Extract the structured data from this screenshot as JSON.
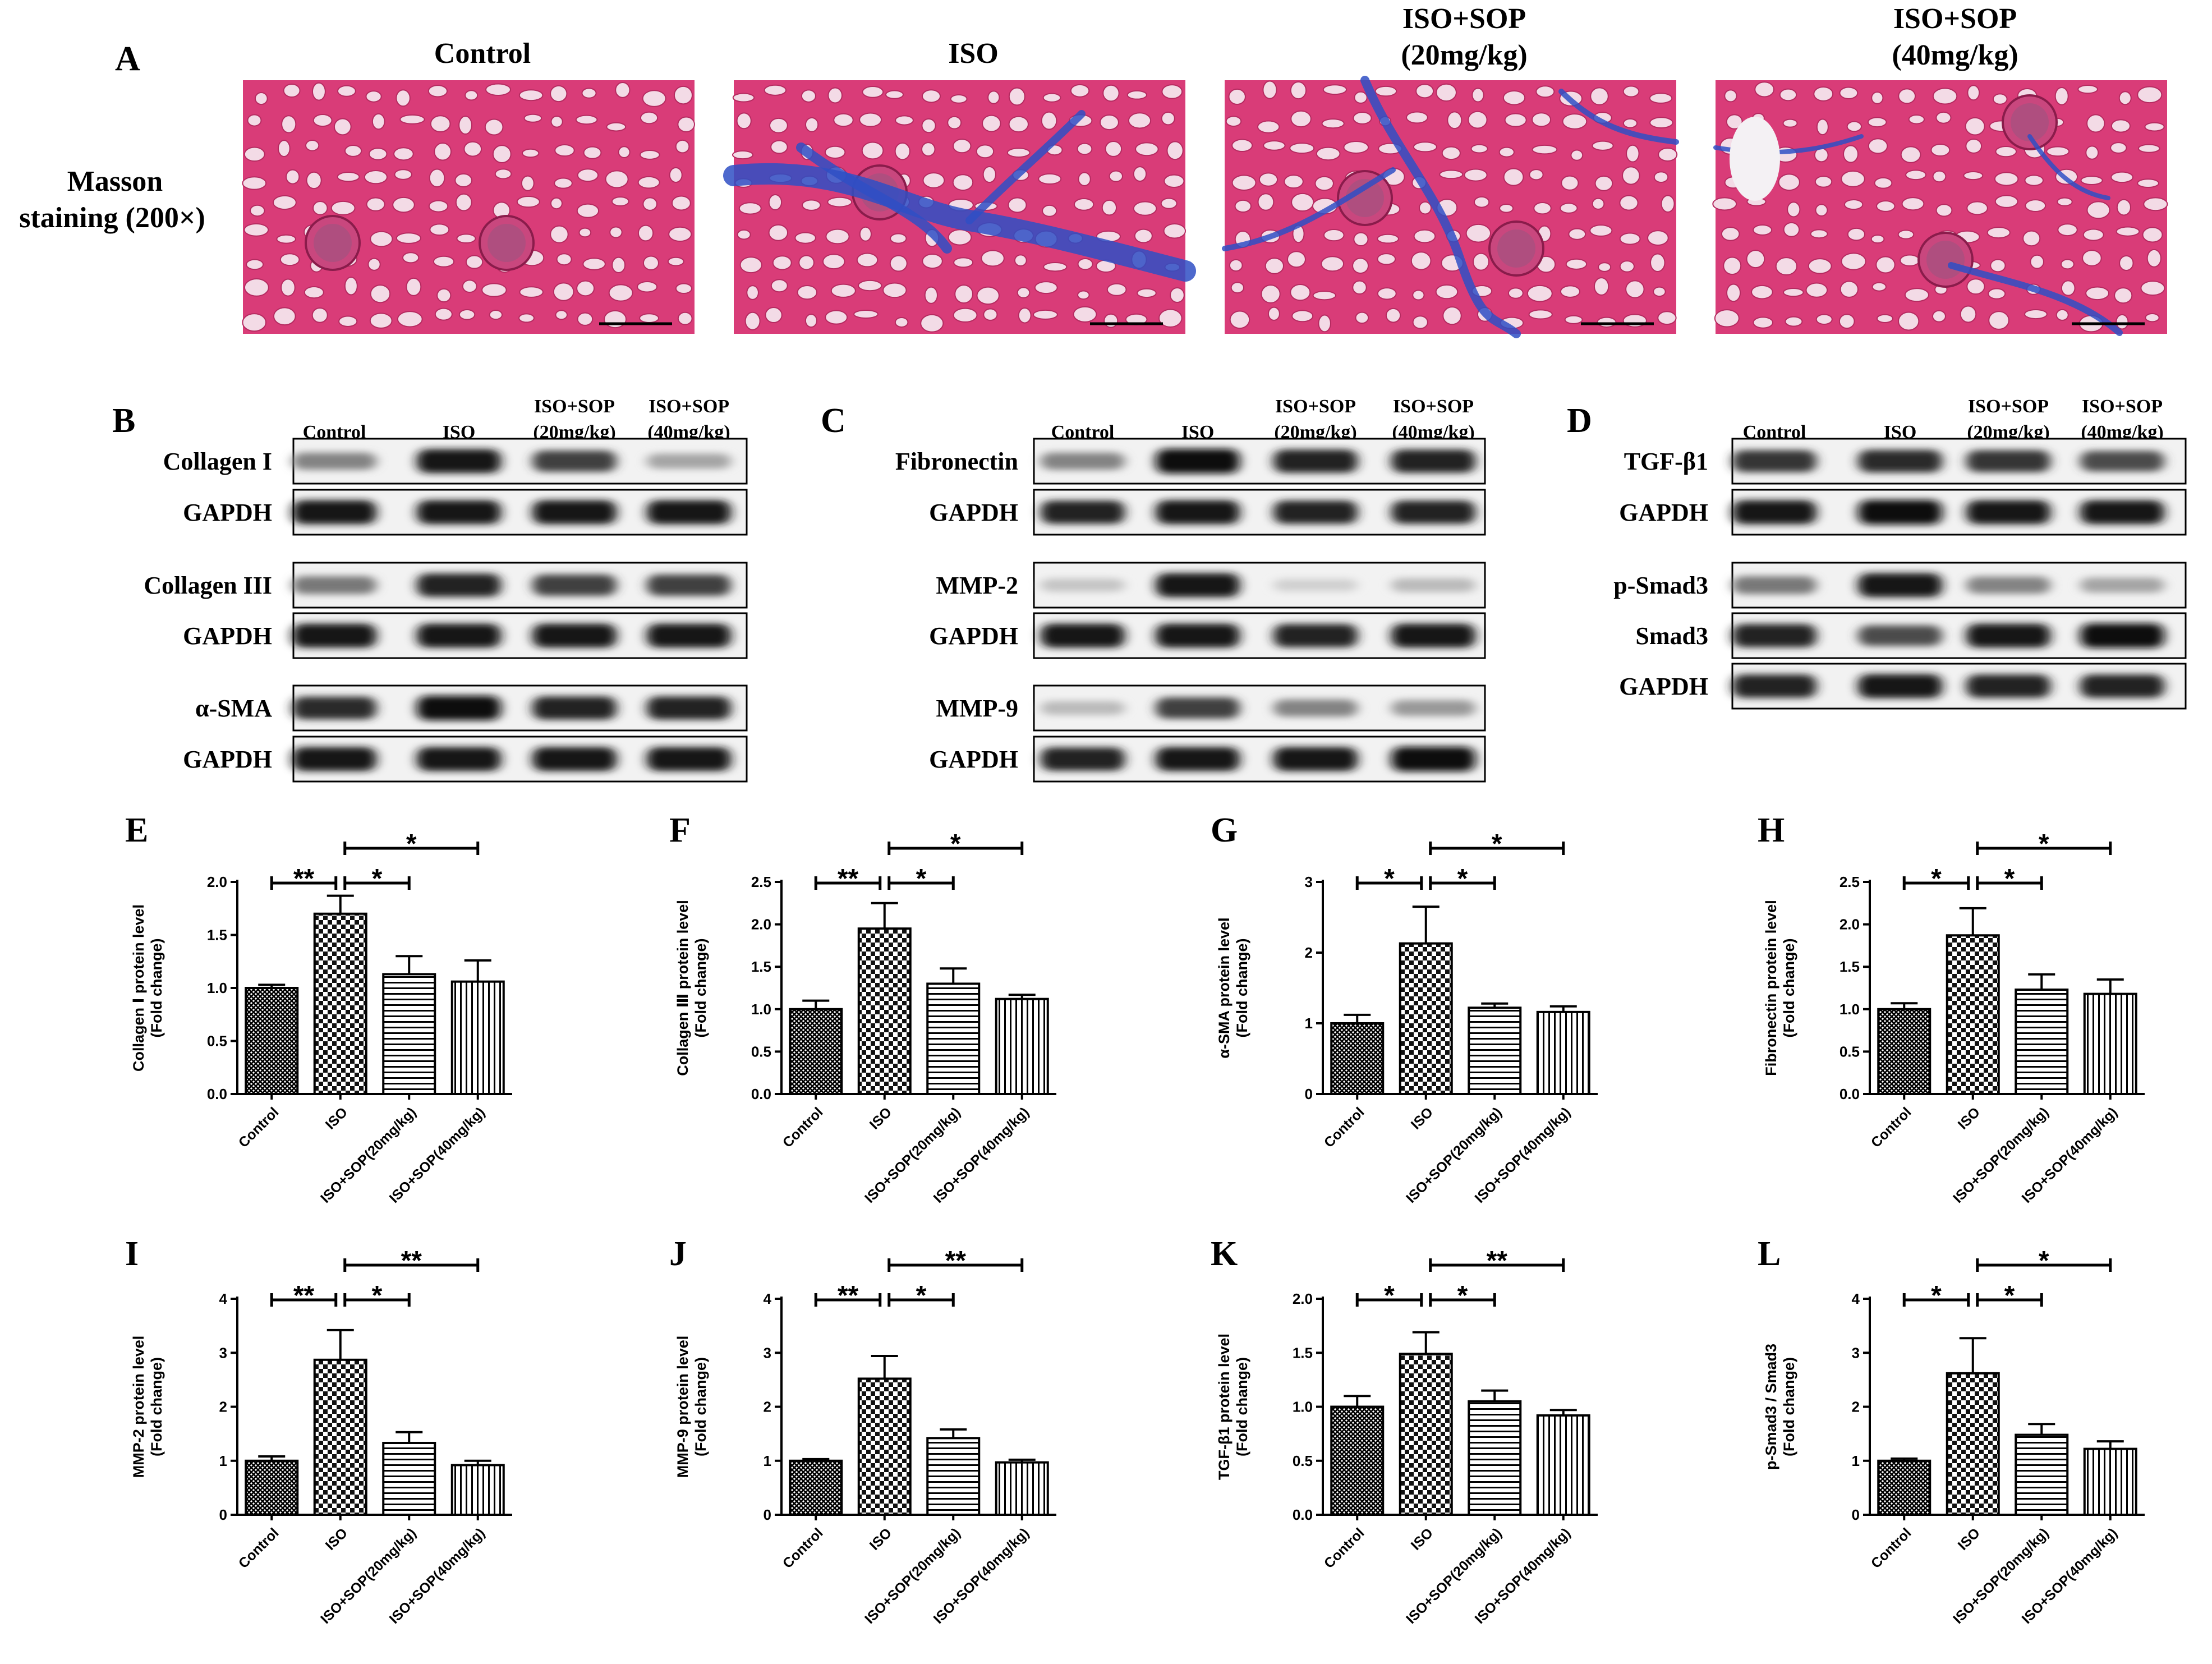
{
  "panel_a": {
    "letter": "A",
    "row_label_line1": "Masson",
    "row_label_line2": "staining (200×)",
    "columns": [
      {
        "line1": "Control",
        "line2": ""
      },
      {
        "line1": "ISO",
        "line2": ""
      },
      {
        "line1": "ISO+SOP",
        "line2": "(20mg/kg)"
      },
      {
        "line1": "ISO+SOP",
        "line2": "(40mg/kg)"
      }
    ],
    "image_colors": {
      "tissue": "#d93c78",
      "fibrosis": "#2f4fc4",
      "lumen": "#f3dbe6"
    }
  },
  "western_blots": [
    {
      "letter": "B",
      "columns": [
        {
          "line1": "Control",
          "line2": ""
        },
        {
          "line1": "ISO",
          "line2": ""
        },
        {
          "line1": "ISO+SOP",
          "line2": "(20mg/kg)"
        },
        {
          "line1": "ISO+SOP",
          "line2": "(40mg/kg)"
        }
      ],
      "rows": [
        {
          "label": "Collagen I",
          "intensity": [
            0.45,
            0.95,
            0.75,
            0.3
          ]
        },
        {
          "label": "GAPDH",
          "intensity": [
            0.95,
            0.95,
            0.95,
            0.95
          ]
        },
        {
          "label": "Collagen III",
          "intensity": [
            0.5,
            0.9,
            0.75,
            0.75
          ]
        },
        {
          "label": "GAPDH",
          "intensity": [
            0.95,
            0.95,
            0.95,
            0.95
          ]
        },
        {
          "label": "α-SMA",
          "intensity": [
            0.85,
            1.0,
            0.9,
            0.9
          ]
        },
        {
          "label": "GAPDH",
          "intensity": [
            0.95,
            0.95,
            0.95,
            0.95
          ]
        }
      ]
    },
    {
      "letter": "C",
      "columns": [
        {
          "line1": "Control",
          "line2": ""
        },
        {
          "line1": "ISO",
          "line2": ""
        },
        {
          "line1": "ISO+SOP",
          "line2": "(20mg/kg)"
        },
        {
          "line1": "ISO+SOP",
          "line2": "(40mg/kg)"
        }
      ],
      "rows": [
        {
          "label": "Fibronectin",
          "intensity": [
            0.45,
            1.0,
            0.9,
            0.9
          ]
        },
        {
          "label": "GAPDH",
          "intensity": [
            0.9,
            0.95,
            0.9,
            0.9
          ]
        },
        {
          "label": "MMP-2",
          "intensity": [
            0.15,
            0.95,
            0.1,
            0.2
          ]
        },
        {
          "label": "GAPDH",
          "intensity": [
            0.95,
            0.95,
            0.9,
            0.95
          ]
        },
        {
          "label": "MMP-9",
          "intensity": [
            0.2,
            0.75,
            0.45,
            0.35
          ]
        },
        {
          "label": "GAPDH",
          "intensity": [
            0.9,
            0.95,
            0.95,
            1.0
          ]
        }
      ]
    },
    {
      "letter": "D",
      "columns": [
        {
          "line1": "Control",
          "line2": ""
        },
        {
          "line1": "ISO",
          "line2": ""
        },
        {
          "line1": "ISO+SOP",
          "line2": "(20mg/kg)"
        },
        {
          "line1": "ISO+SOP",
          "line2": "(40mg/kg)"
        }
      ],
      "rows": [
        {
          "label": "TGF-β1",
          "intensity": [
            0.8,
            0.85,
            0.8,
            0.7
          ]
        },
        {
          "label": "GAPDH",
          "intensity": [
            0.95,
            1.0,
            0.95,
            0.95
          ]
        },
        {
          "label": "p-Smad3",
          "intensity": [
            0.5,
            0.95,
            0.45,
            0.3
          ]
        },
        {
          "label": "Smad3",
          "intensity": [
            0.9,
            0.7,
            0.95,
            1.0
          ]
        },
        {
          "label": "GAPDH",
          "intensity": [
            0.9,
            0.95,
            0.9,
            0.9
          ]
        }
      ]
    }
  ],
  "chart_data": [
    {
      "type": "bar",
      "panel": "E",
      "categories": [
        "Control",
        "ISO",
        "ISO+SOP(20mg/kg)",
        "ISO+SOP(40mg/kg)"
      ],
      "values": [
        1.0,
        1.7,
        1.13,
        1.06
      ],
      "errors": [
        0.03,
        0.17,
        0.17,
        0.2
      ],
      "ylabel": [
        "Collagen Ⅰ protein level",
        "(Fold change)"
      ],
      "ylim": [
        0,
        2.0
      ],
      "yticks": [
        "0.0",
        "0.5",
        "1.0",
        "1.5",
        "2.0"
      ],
      "patterns": [
        "dense",
        "checker",
        "horizontal",
        "vertical"
      ],
      "significance": [
        {
          "from": 0,
          "to": 1,
          "label": "**"
        },
        {
          "from": 1,
          "to": 2,
          "label": "*"
        },
        {
          "from": 1,
          "to": 3,
          "label": "*"
        }
      ]
    },
    {
      "type": "bar",
      "panel": "F",
      "categories": [
        "Control",
        "ISO",
        "ISO+SOP(20mg/kg)",
        "ISO+SOP(40mg/kg)"
      ],
      "values": [
        1.0,
        1.95,
        1.3,
        1.12
      ],
      "errors": [
        0.1,
        0.3,
        0.18,
        0.05
      ],
      "ylabel": [
        "Collagen Ⅲ protein level",
        "(Fold change)"
      ],
      "ylim": [
        0,
        2.5
      ],
      "yticks": [
        "0.0",
        "0.5",
        "1.0",
        "1.5",
        "2.0",
        "2.5"
      ],
      "patterns": [
        "dense",
        "checker",
        "horizontal",
        "vertical"
      ],
      "significance": [
        {
          "from": 0,
          "to": 1,
          "label": "**"
        },
        {
          "from": 1,
          "to": 2,
          "label": "*"
        },
        {
          "from": 1,
          "to": 3,
          "label": "*"
        }
      ]
    },
    {
      "type": "bar",
      "panel": "G",
      "categories": [
        "Control",
        "ISO",
        "ISO+SOP(20mg/kg)",
        "ISO+SOP(40mg/kg)"
      ],
      "values": [
        1.0,
        2.13,
        1.22,
        1.16
      ],
      "errors": [
        0.12,
        0.52,
        0.06,
        0.08
      ],
      "ylabel": [
        "α-SMA protein level",
        "(Fold change)"
      ],
      "ylim": [
        0,
        3
      ],
      "yticks": [
        "0",
        "1",
        "2",
        "3"
      ],
      "patterns": [
        "dense",
        "checker",
        "horizontal",
        "vertical"
      ],
      "significance": [
        {
          "from": 0,
          "to": 1,
          "label": "*"
        },
        {
          "from": 1,
          "to": 2,
          "label": "*"
        },
        {
          "from": 1,
          "to": 3,
          "label": "*"
        }
      ]
    },
    {
      "type": "bar",
      "panel": "H",
      "categories": [
        "Control",
        "ISO",
        "ISO+SOP(20mg/kg)",
        "ISO+SOP(40mg/kg)"
      ],
      "values": [
        1.0,
        1.87,
        1.23,
        1.18
      ],
      "errors": [
        0.07,
        0.32,
        0.18,
        0.17
      ],
      "ylabel": [
        "Fibronectin protein level",
        "(Fold change)"
      ],
      "ylim": [
        0,
        2.5
      ],
      "yticks": [
        "0.0",
        "0.5",
        "1.0",
        "1.5",
        "2.0",
        "2.5"
      ],
      "patterns": [
        "dense",
        "checker",
        "horizontal",
        "vertical"
      ],
      "significance": [
        {
          "from": 0,
          "to": 1,
          "label": "*"
        },
        {
          "from": 1,
          "to": 2,
          "label": "*"
        },
        {
          "from": 1,
          "to": 3,
          "label": "*"
        }
      ]
    },
    {
      "type": "bar",
      "panel": "I",
      "categories": [
        "Control",
        "ISO",
        "ISO+SOP(20mg/kg)",
        "ISO+SOP(40mg/kg)"
      ],
      "values": [
        1.0,
        2.87,
        1.33,
        0.92
      ],
      "errors": [
        0.08,
        0.55,
        0.2,
        0.08
      ],
      "ylabel": [
        "MMP-2 protein level",
        "(Fold change)"
      ],
      "ylim": [
        0,
        4
      ],
      "yticks": [
        "0",
        "1",
        "2",
        "3",
        "4"
      ],
      "patterns": [
        "dense",
        "checker",
        "horizontal",
        "vertical"
      ],
      "significance": [
        {
          "from": 0,
          "to": 1,
          "label": "**"
        },
        {
          "from": 1,
          "to": 2,
          "label": "*"
        },
        {
          "from": 1,
          "to": 3,
          "label": "**"
        }
      ]
    },
    {
      "type": "bar",
      "panel": "J",
      "categories": [
        "Control",
        "ISO",
        "ISO+SOP(20mg/kg)",
        "ISO+SOP(40mg/kg)"
      ],
      "values": [
        1.0,
        2.52,
        1.42,
        0.97
      ],
      "errors": [
        0.03,
        0.42,
        0.16,
        0.05
      ],
      "ylabel": [
        "MMP-9 protein level",
        "(Fold change)"
      ],
      "ylim": [
        0,
        4
      ],
      "yticks": [
        "0",
        "1",
        "2",
        "3",
        "4"
      ],
      "patterns": [
        "dense",
        "checker",
        "horizontal",
        "vertical"
      ],
      "significance": [
        {
          "from": 0,
          "to": 1,
          "label": "**"
        },
        {
          "from": 1,
          "to": 2,
          "label": "*"
        },
        {
          "from": 1,
          "to": 3,
          "label": "**"
        }
      ]
    },
    {
      "type": "bar",
      "panel": "K",
      "categories": [
        "Control",
        "ISO",
        "ISO+SOP(20mg/kg)",
        "ISO+SOP(40mg/kg)"
      ],
      "values": [
        1.0,
        1.49,
        1.05,
        0.92
      ],
      "errors": [
        0.1,
        0.2,
        0.1,
        0.05
      ],
      "ylabel": [
        "TGF-β1 protein level",
        "(Fold change)"
      ],
      "ylim": [
        0,
        2.0
      ],
      "yticks": [
        "0.0",
        "0.5",
        "1.0",
        "1.5",
        "2.0"
      ],
      "patterns": [
        "dense",
        "checker",
        "horizontal",
        "vertical"
      ],
      "significance": [
        {
          "from": 0,
          "to": 1,
          "label": "*"
        },
        {
          "from": 1,
          "to": 2,
          "label": "*"
        },
        {
          "from": 1,
          "to": 3,
          "label": "**"
        }
      ]
    },
    {
      "type": "bar",
      "panel": "L",
      "categories": [
        "Control",
        "ISO",
        "ISO+SOP(20mg/kg)",
        "ISO+SOP(40mg/kg)"
      ],
      "values": [
        1.0,
        2.62,
        1.48,
        1.22
      ],
      "errors": [
        0.04,
        0.65,
        0.2,
        0.14
      ],
      "ylabel": [
        "p-Smad3 / Smad3",
        "(Fold change)"
      ],
      "ylim": [
        0,
        4
      ],
      "yticks": [
        "0",
        "1",
        "2",
        "3",
        "4"
      ],
      "patterns": [
        "dense",
        "checker",
        "horizontal",
        "vertical"
      ],
      "significance": [
        {
          "from": 0,
          "to": 1,
          "label": "*"
        },
        {
          "from": 1,
          "to": 2,
          "label": "*"
        },
        {
          "from": 1,
          "to": 3,
          "label": "*"
        }
      ]
    }
  ]
}
